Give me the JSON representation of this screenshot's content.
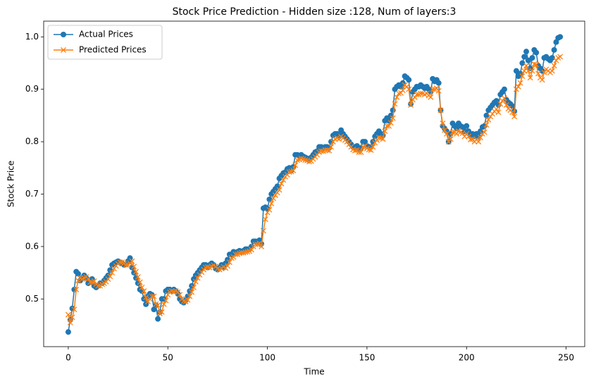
{
  "chart_data": {
    "type": "line",
    "title": "Stock Price Prediction - Hidden size :128, Num of layers:3",
    "xlabel": "Time",
    "ylabel": "Stock Price",
    "legend": "upper left",
    "grid": false,
    "xlim": [
      -12.35,
      259.35
    ],
    "ylim": [
      0.409,
      1.03
    ],
    "xticks": [
      0,
      50,
      100,
      150,
      200,
      250
    ],
    "yticks": [
      0.5,
      0.6,
      0.7,
      0.8,
      0.9,
      {
        "value": 1.0,
        "label": "1.0"
      }
    ],
    "x": [
      0,
      1,
      2,
      3,
      4,
      5,
      6,
      7,
      8,
      9,
      10,
      11,
      12,
      13,
      14,
      15,
      16,
      17,
      18,
      19,
      20,
      21,
      22,
      23,
      24,
      25,
      26,
      27,
      28,
      29,
      30,
      31,
      32,
      33,
      34,
      35,
      36,
      37,
      38,
      39,
      40,
      41,
      42,
      43,
      44,
      45,
      46,
      47,
      48,
      49,
      50,
      51,
      52,
      53,
      54,
      55,
      56,
      57,
      58,
      59,
      60,
      61,
      62,
      63,
      64,
      65,
      66,
      67,
      68,
      69,
      70,
      71,
      72,
      73,
      74,
      75,
      76,
      77,
      78,
      79,
      80,
      81,
      82,
      83,
      84,
      85,
      86,
      87,
      88,
      89,
      90,
      91,
      92,
      93,
      94,
      95,
      96,
      97,
      98,
      99,
      100,
      101,
      102,
      103,
      104,
      105,
      106,
      107,
      108,
      109,
      110,
      111,
      112,
      113,
      114,
      115,
      116,
      117,
      118,
      119,
      120,
      121,
      122,
      123,
      124,
      125,
      126,
      127,
      128,
      129,
      130,
      131,
      132,
      133,
      134,
      135,
      136,
      137,
      138,
      139,
      140,
      141,
      142,
      143,
      144,
      145,
      146,
      147,
      148,
      149,
      150,
      151,
      152,
      153,
      154,
      155,
      156,
      157,
      158,
      159,
      160,
      161,
      162,
      163,
      164,
      165,
      166,
      167,
      168,
      169,
      170,
      171,
      172,
      173,
      174,
      175,
      176,
      177,
      178,
      179,
      180,
      181,
      182,
      183,
      184,
      185,
      186,
      187,
      188,
      189,
      190,
      191,
      192,
      193,
      194,
      195,
      196,
      197,
      198,
      199,
      200,
      201,
      202,
      203,
      204,
      205,
      206,
      207,
      208,
      209,
      210,
      211,
      212,
      213,
      214,
      215,
      216,
      217,
      218,
      219,
      220,
      221,
      222,
      223,
      224,
      225,
      226,
      227,
      228,
      229,
      230,
      231,
      232,
      233,
      234,
      235,
      236,
      237,
      238,
      239,
      240,
      241,
      242,
      243,
      244,
      245,
      246,
      247
    ],
    "series": [
      {
        "name": "Actual Prices",
        "color": "#1f77b4",
        "marker": "o",
        "values": [
          0.437,
          0.46,
          0.482,
          0.518,
          0.552,
          0.548,
          0.535,
          0.54,
          0.545,
          0.54,
          0.53,
          0.532,
          0.538,
          0.525,
          0.522,
          0.525,
          0.53,
          0.53,
          0.535,
          0.54,
          0.545,
          0.555,
          0.565,
          0.568,
          0.57,
          0.572,
          0.57,
          0.568,
          0.565,
          0.566,
          0.572,
          0.578,
          0.56,
          0.55,
          0.54,
          0.53,
          0.518,
          0.515,
          0.5,
          0.49,
          0.505,
          0.51,
          0.508,
          0.48,
          0.488,
          0.462,
          0.475,
          0.5,
          0.5,
          0.515,
          0.518,
          0.518,
          0.515,
          0.518,
          0.515,
          0.51,
          0.5,
          0.495,
          0.493,
          0.498,
          0.505,
          0.515,
          0.525,
          0.538,
          0.545,
          0.55,
          0.555,
          0.56,
          0.565,
          0.565,
          0.56,
          0.565,
          0.568,
          0.565,
          0.558,
          0.556,
          0.56,
          0.565,
          0.56,
          0.568,
          0.575,
          0.585,
          0.585,
          0.59,
          0.588,
          0.59,
          0.592,
          0.59,
          0.592,
          0.595,
          0.595,
          0.595,
          0.6,
          0.61,
          0.61,
          0.608,
          0.612,
          0.605,
          0.673,
          0.675,
          0.672,
          0.69,
          0.7,
          0.705,
          0.71,
          0.715,
          0.73,
          0.735,
          0.74,
          0.742,
          0.748,
          0.75,
          0.745,
          0.752,
          0.775,
          0.775,
          0.772,
          0.775,
          0.772,
          0.77,
          0.768,
          0.765,
          0.77,
          0.775,
          0.78,
          0.782,
          0.79,
          0.79,
          0.788,
          0.79,
          0.79,
          0.788,
          0.8,
          0.812,
          0.815,
          0.815,
          0.81,
          0.822,
          0.815,
          0.81,
          0.805,
          0.8,
          0.795,
          0.79,
          0.79,
          0.792,
          0.785,
          0.788,
          0.8,
          0.8,
          0.792,
          0.79,
          0.79,
          0.8,
          0.81,
          0.815,
          0.82,
          0.815,
          0.812,
          0.84,
          0.845,
          0.84,
          0.85,
          0.86,
          0.9,
          0.905,
          0.908,
          0.905,
          0.912,
          0.925,
          0.922,
          0.918,
          0.872,
          0.895,
          0.9,
          0.905,
          0.905,
          0.908,
          0.905,
          0.902,
          0.905,
          0.9,
          0.895,
          0.92,
          0.915,
          0.918,
          0.912,
          0.86,
          0.83,
          0.825,
          0.82,
          0.8,
          0.815,
          0.835,
          0.83,
          0.825,
          0.835,
          0.83,
          0.828,
          0.82,
          0.83,
          0.82,
          0.812,
          0.815,
          0.81,
          0.815,
          0.81,
          0.82,
          0.828,
          0.83,
          0.85,
          0.86,
          0.865,
          0.87,
          0.875,
          0.878,
          0.87,
          0.89,
          0.895,
          0.9,
          0.88,
          0.875,
          0.872,
          0.868,
          0.858,
          0.935,
          0.925,
          0.93,
          0.95,
          0.962,
          0.972,
          0.955,
          0.94,
          0.96,
          0.975,
          0.97,
          0.945,
          0.94,
          0.935,
          0.96,
          0.962,
          0.958,
          0.955,
          0.96,
          0.975,
          0.99,
          0.998,
          1.0
        ]
      },
      {
        "name": "Predicted Prices",
        "color": "#ff7f0e",
        "marker": "x",
        "values": [
          0.47,
          0.455,
          0.465,
          0.48,
          0.518,
          0.535,
          0.54,
          0.538,
          0.54,
          0.542,
          0.538,
          0.532,
          0.532,
          0.534,
          0.528,
          0.525,
          0.525,
          0.528,
          0.53,
          0.533,
          0.538,
          0.543,
          0.55,
          0.558,
          0.563,
          0.567,
          0.57,
          0.57,
          0.568,
          0.565,
          0.565,
          0.568,
          0.572,
          0.562,
          0.552,
          0.542,
          0.532,
          0.522,
          0.515,
          0.503,
          0.495,
          0.5,
          0.505,
          0.505,
          0.49,
          0.488,
          0.472,
          0.475,
          0.49,
          0.497,
          0.508,
          0.513,
          0.515,
          0.514,
          0.515,
          0.513,
          0.508,
          0.5,
          0.496,
          0.495,
          0.498,
          0.505,
          0.513,
          0.522,
          0.533,
          0.54,
          0.546,
          0.551,
          0.556,
          0.56,
          0.561,
          0.56,
          0.562,
          0.564,
          0.562,
          0.558,
          0.556,
          0.558,
          0.561,
          0.559,
          0.563,
          0.57,
          0.578,
          0.58,
          0.585,
          0.585,
          0.587,
          0.588,
          0.588,
          0.589,
          0.59,
          0.591,
          0.594,
          0.6,
          0.604,
          0.604,
          0.606,
          0.6,
          0.63,
          0.652,
          0.665,
          0.67,
          0.682,
          0.692,
          0.698,
          0.703,
          0.708,
          0.72,
          0.727,
          0.733,
          0.737,
          0.742,
          0.743,
          0.745,
          0.755,
          0.765,
          0.766,
          0.768,
          0.767,
          0.765,
          0.764,
          0.762,
          0.763,
          0.767,
          0.771,
          0.775,
          0.78,
          0.782,
          0.782,
          0.784,
          0.784,
          0.783,
          0.79,
          0.8,
          0.805,
          0.807,
          0.805,
          0.81,
          0.807,
          0.803,
          0.8,
          0.795,
          0.79,
          0.785,
          0.783,
          0.784,
          0.78,
          0.78,
          0.79,
          0.792,
          0.787,
          0.785,
          0.784,
          0.79,
          0.798,
          0.803,
          0.808,
          0.807,
          0.805,
          0.82,
          0.83,
          0.83,
          0.836,
          0.845,
          0.872,
          0.885,
          0.892,
          0.893,
          0.898,
          0.908,
          0.905,
          0.9,
          0.87,
          0.88,
          0.885,
          0.89,
          0.89,
          0.892,
          0.892,
          0.89,
          0.892,
          0.888,
          0.885,
          0.9,
          0.9,
          0.902,
          0.897,
          0.86,
          0.835,
          0.822,
          0.815,
          0.8,
          0.805,
          0.818,
          0.818,
          0.815,
          0.82,
          0.818,
          0.816,
          0.81,
          0.815,
          0.81,
          0.804,
          0.805,
          0.8,
          0.804,
          0.8,
          0.808,
          0.815,
          0.818,
          0.832,
          0.842,
          0.848,
          0.853,
          0.858,
          0.862,
          0.856,
          0.872,
          0.878,
          0.883,
          0.87,
          0.863,
          0.86,
          0.856,
          0.848,
          0.9,
          0.905,
          0.912,
          0.925,
          0.935,
          0.945,
          0.935,
          0.922,
          0.935,
          0.948,
          0.947,
          0.93,
          0.922,
          0.918,
          0.932,
          0.938,
          0.935,
          0.932,
          0.935,
          0.945,
          0.955,
          0.96,
          0.962
        ]
      }
    ]
  }
}
